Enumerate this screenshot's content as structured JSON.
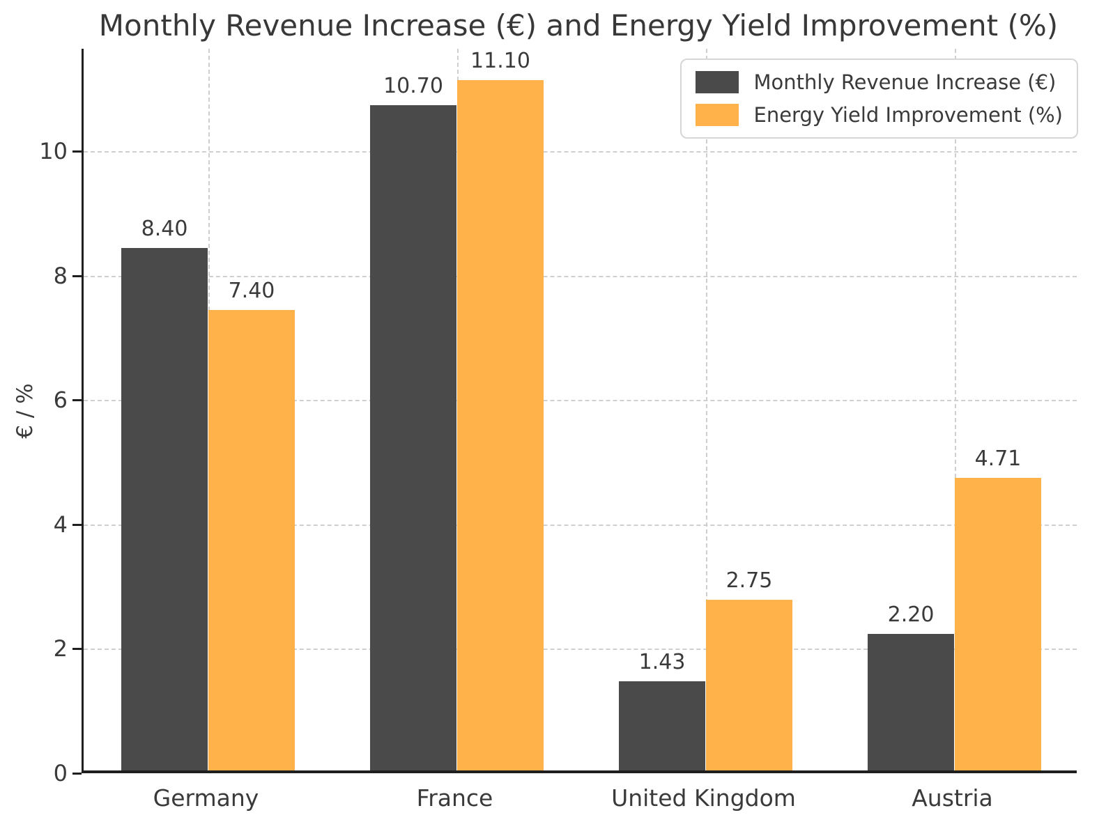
{
  "chart_data": {
    "type": "bar",
    "title": "Monthly Revenue Increase (€) and Energy Yield Improvement (%)",
    "xlabel": "",
    "ylabel": "€ / %",
    "categories": [
      "Germany",
      "France",
      "United Kingdom",
      "Austria"
    ],
    "series": [
      {
        "key": "revenue",
        "name": "Monthly Revenue Increase (€)",
        "color": "#4a4a4a",
        "values": [
          8.4,
          10.7,
          1.43,
          2.2
        ],
        "bar_labels": [
          "8.40",
          "10.70",
          "1.43",
          "2.20"
        ]
      },
      {
        "key": "yield",
        "name": "Energy Yield Improvement (%)",
        "color": "#ffb24a",
        "values": [
          7.4,
          11.1,
          2.75,
          4.71
        ],
        "bar_labels": [
          "7.40",
          "11.10",
          "2.75",
          "4.71"
        ]
      }
    ],
    "yticks": [
      0,
      2,
      4,
      6,
      8,
      10
    ],
    "ylim": [
      0,
      11.65
    ],
    "grid": "dashed",
    "legend_position": "upper right",
    "grid_color": "#cfcfcf",
    "axis_color": "#1f1f1f",
    "text_color": "#3a3a3a"
  }
}
